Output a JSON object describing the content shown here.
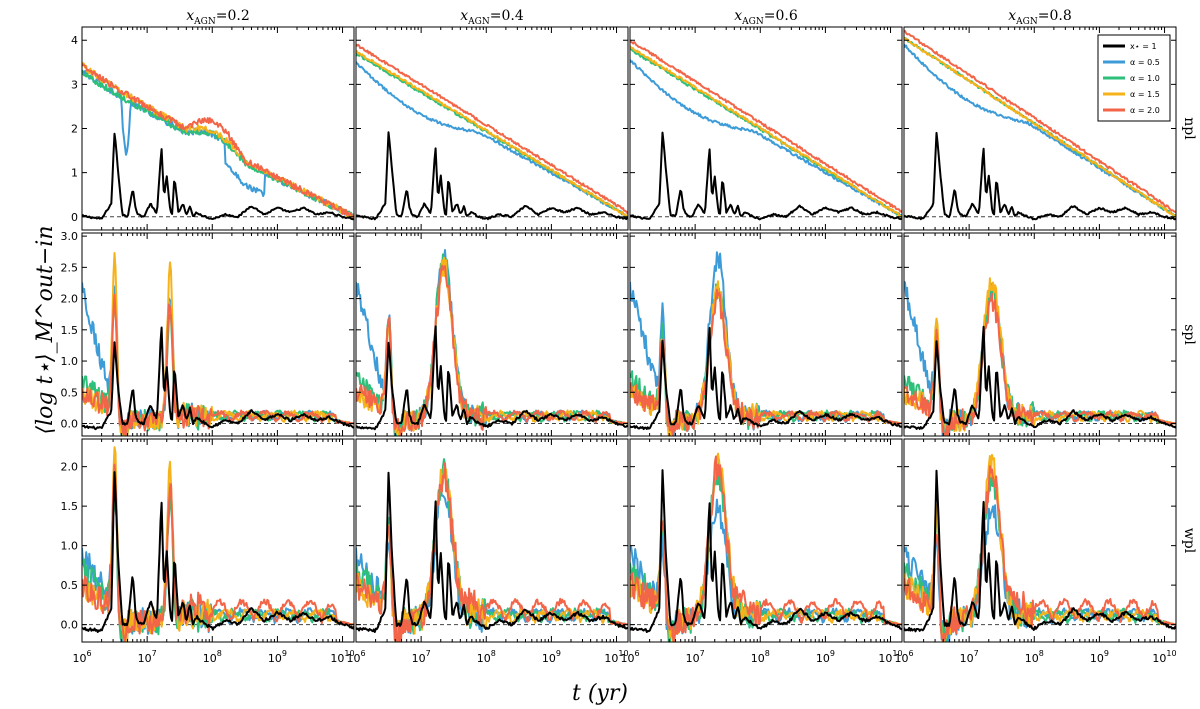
{
  "chart_data": {
    "type": "line",
    "title": "",
    "xlabel": "t (yr)",
    "ylabel": "⟨log t⋆⟩_M^out−in",
    "xscale": "log",
    "xlim": [
      1000000,
      15000000000
    ],
    "x_ticks": [
      {
        "value": 1000000,
        "base": "10",
        "exp": "6"
      },
      {
        "value": 10000000,
        "base": "10",
        "exp": "7"
      },
      {
        "value": 100000000,
        "base": "10",
        "exp": "8"
      },
      {
        "value": 1000000000,
        "base": "10",
        "exp": "9"
      },
      {
        "value": 10000000000,
        "base": "10",
        "exp": "10"
      }
    ],
    "columns": [
      {
        "label_main": "x",
        "label_sub": "AGN",
        "label_value": "=0.2"
      },
      {
        "label_main": "x",
        "label_sub": "AGN",
        "label_value": "=0.4"
      },
      {
        "label_main": "x",
        "label_sub": "AGN",
        "label_value": "=0.6"
      },
      {
        "label_main": "x",
        "label_sub": "AGN",
        "label_value": "=0.8"
      }
    ],
    "rows": [
      {
        "label": "npl",
        "ylim": [
          -0.3,
          4.3
        ],
        "yticks": [
          0,
          1,
          2,
          3,
          4
        ],
        "ytick_labels": [
          "0",
          "1",
          "2",
          "3",
          "4"
        ]
      },
      {
        "label": "spl",
        "ylim": [
          -0.2,
          3.05
        ],
        "yticks": [
          0.0,
          0.5,
          1.0,
          1.5,
          2.0,
          2.5,
          3.0
        ],
        "ytick_labels": [
          "0.0",
          "0.5",
          "1.0",
          "1.5",
          "2.0",
          "2.5",
          "3.0"
        ]
      },
      {
        "label": "wpl",
        "ylim": [
          -0.22,
          2.35
        ],
        "yticks": [
          0.0,
          0.5,
          1.0,
          1.5,
          2.0
        ],
        "ytick_labels": [
          "0.0",
          "0.5",
          "1.0",
          "1.5",
          "2.0"
        ]
      }
    ],
    "legend": {
      "position": "top-right",
      "entries": [
        {
          "label": "x⋆ = 1",
          "color": "#000000"
        },
        {
          "label": "α = 0.5",
          "color": "#3d9bd7"
        },
        {
          "label": "α = 1.0",
          "color": "#2ebf7a"
        },
        {
          "label": "α = 1.5",
          "color": "#f5b21a"
        },
        {
          "label": "α = 2.0",
          "color": "#f26548"
        }
      ]
    },
    "series": [
      {
        "name": "x⋆ = 1",
        "color": "#000000",
        "linewidth": 2.0
      },
      {
        "name": "α = 0.5",
        "color": "#3d9bd7",
        "linewidth": 2.0
      },
      {
        "name": "α = 1.0",
        "color": "#2ebf7a",
        "linewidth": 2.0
      },
      {
        "name": "α = 1.5",
        "color": "#f5b21a",
        "linewidth": 2.0
      },
      {
        "name": "α = 2.0",
        "color": "#f26548",
        "linewidth": 2.0
      }
    ],
    "black_reference": {
      "log_t": [
        6.0,
        6.3,
        6.45,
        6.5,
        6.55,
        6.62,
        6.7,
        6.78,
        6.82,
        6.86,
        6.95,
        7.05,
        7.15,
        7.22,
        7.26,
        7.3,
        7.35,
        7.38,
        7.42,
        7.48,
        7.55,
        7.6,
        7.66,
        7.7,
        7.76,
        7.82,
        7.9,
        8.0,
        8.2,
        8.4,
        8.6,
        8.8,
        9.0,
        9.2,
        9.4,
        9.6,
        9.8,
        10.0,
        10.18
      ],
      "npl": [
        0.02,
        -0.05,
        0.3,
        1.95,
        1.1,
        0.05,
        0.0,
        0.65,
        0.2,
        0.05,
        0.0,
        0.3,
        0.05,
        1.6,
        0.4,
        0.95,
        0.2,
        0.0,
        0.9,
        0.1,
        0.3,
        0.05,
        0.25,
        0.0,
        0.1,
        0.05,
        0.0,
        -0.05,
        0.05,
        0.0,
        0.25,
        0.05,
        0.2,
        0.1,
        0.2,
        0.05,
        0.1,
        0.0,
        -0.05
      ],
      "spl": [
        -0.05,
        -0.08,
        0.2,
        1.35,
        0.6,
        0.0,
        0.0,
        0.6,
        0.15,
        0.02,
        0.0,
        0.3,
        0.05,
        1.6,
        0.4,
        0.95,
        0.2,
        0.0,
        0.95,
        0.1,
        0.3,
        0.05,
        0.25,
        0.0,
        0.1,
        0.05,
        0.0,
        -0.05,
        0.05,
        0.0,
        0.2,
        0.05,
        0.15,
        0.05,
        0.15,
        0.05,
        0.1,
        0.0,
        -0.05
      ],
      "wpl": [
        -0.05,
        -0.08,
        0.2,
        2.0,
        0.9,
        0.0,
        0.0,
        0.65,
        0.15,
        0.02,
        0.0,
        0.3,
        0.05,
        1.6,
        0.4,
        0.95,
        0.2,
        0.0,
        0.9,
        0.1,
        0.3,
        0.05,
        0.25,
        0.0,
        0.1,
        0.05,
        0.0,
        -0.05,
        0.05,
        0.0,
        0.2,
        0.05,
        0.15,
        0.05,
        0.15,
        0.05,
        0.1,
        0.0,
        -0.05
      ]
    },
    "npl_curves": {
      "log_t_end": 10.18,
      "start_values": [
        [
          3.3,
          3.5,
          3.55,
          3.9
        ],
        [
          3.3,
          3.7,
          3.8,
          4.05
        ],
        [
          3.45,
          3.75,
          3.85,
          4.05
        ],
        [
          3.45,
          3.8,
          3.9,
          4.1
        ]
      ]
    },
    "spl_peak_values": [
      [
        2.2,
        2.9,
        2.9,
        2.4
      ],
      [
        2.05,
        2.9,
        2.3,
        2.3
      ],
      [
        2.7,
        2.75,
        2.3,
        2.5
      ],
      [
        2.0,
        2.7,
        2.15,
        2.15
      ]
    ],
    "wpl_peak_values": [
      [
        1.95,
        1.85,
        1.6,
        1.6
      ],
      [
        1.7,
        2.1,
        2.1,
        2.05
      ],
      [
        2.2,
        2.1,
        2.25,
        2.2
      ],
      [
        1.95,
        2.05,
        2.2,
        2.1
      ]
    ]
  }
}
